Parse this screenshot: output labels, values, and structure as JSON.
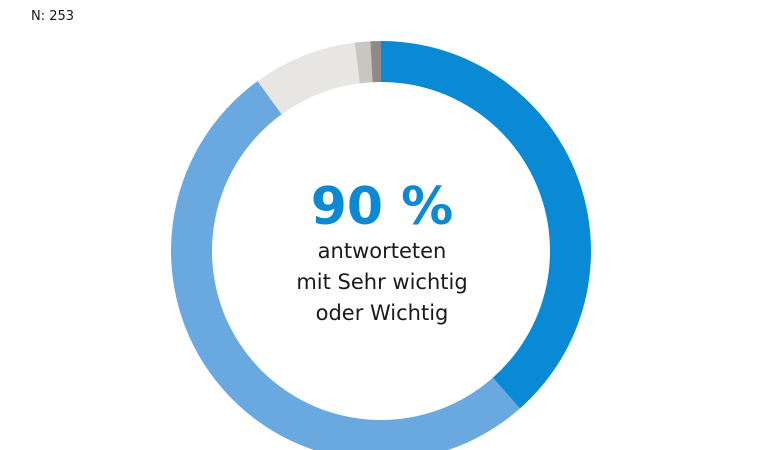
{
  "sample_size": "N: 253",
  "center": {
    "value": "90 %",
    "line1": "antworteten",
    "line2": "mit Sehr wichtig",
    "line3": "oder Wichtig"
  },
  "chart_data": {
    "type": "pie",
    "title": "",
    "values": [
      38.5,
      51.5,
      8,
      1.2,
      0.8
    ],
    "colors": [
      "#0a8ad4",
      "#6aa9df",
      "#e8e6e3",
      "#c9c6c2",
      "#8f8a86"
    ],
    "legend": false
  }
}
